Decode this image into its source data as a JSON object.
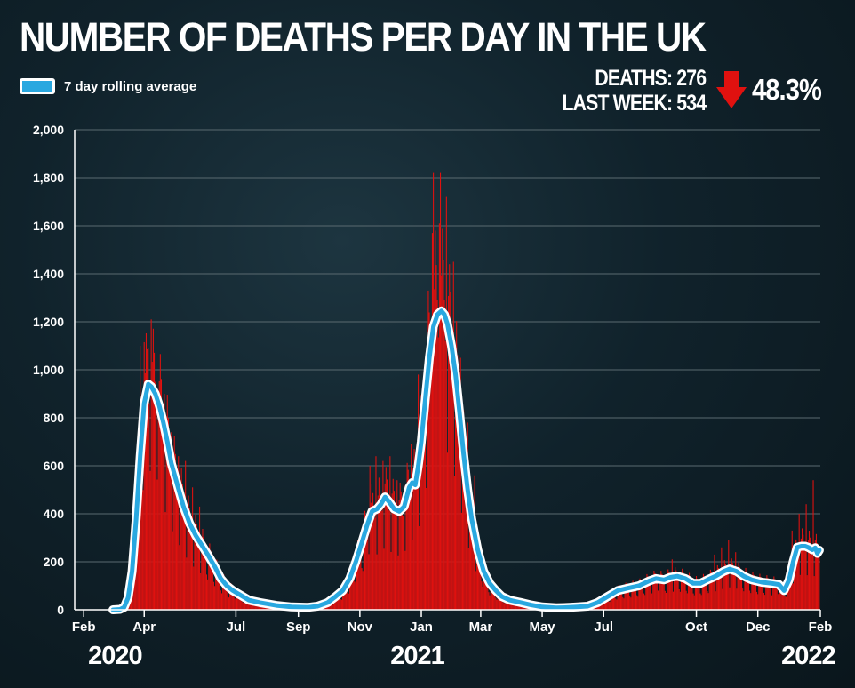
{
  "title": "NUMBER OF DEATHS PER DAY IN THE UK",
  "legend": {
    "label": "7 day rolling average"
  },
  "stats": {
    "deaths_label": "DEATHS:",
    "deaths_value": "276",
    "last_week_label": "LAST WEEK:",
    "last_week_value": "534",
    "change": "48.3%",
    "direction": "down"
  },
  "colors": {
    "bars": "#e0110f",
    "line": "#29a8e0",
    "line_outline": "#ffffff",
    "grid": "#5a6a70",
    "arrow": "#e0110f"
  },
  "chart_data": {
    "type": "bar",
    "overlay": "line",
    "title": "NUMBER OF DEATHS PER DAY IN THE UK",
    "xlabel": "",
    "ylabel": "",
    "ylim": [
      0,
      2000
    ],
    "y_ticks": [
      0,
      200,
      400,
      600,
      800,
      1000,
      1200,
      1400,
      1600,
      1800,
      2000
    ],
    "y_tick_labels": [
      "0",
      "200",
      "400",
      "600",
      "800",
      "1,000",
      "1,200",
      "1,400",
      "1,600",
      "1,800",
      "2,000"
    ],
    "x_ticks": [
      {
        "date": "2020-02-01",
        "label": "Feb"
      },
      {
        "date": "2020-04-01",
        "label": "Apr"
      },
      {
        "date": "2020-07-01",
        "label": "Jul"
      },
      {
        "date": "2020-09-01",
        "label": "Sep"
      },
      {
        "date": "2020-11-01",
        "label": "Nov"
      },
      {
        "date": "2021-01-01",
        "label": "Jan"
      },
      {
        "date": "2021-03-01",
        "label": "Mar"
      },
      {
        "date": "2021-05-01",
        "label": "May"
      },
      {
        "date": "2021-07-01",
        "label": "Jul"
      },
      {
        "date": "2021-10-01",
        "label": "Oct"
      },
      {
        "date": "2021-12-01",
        "label": "Dec"
      },
      {
        "date": "2022-02-01",
        "label": "Feb"
      }
    ],
    "x_range": [
      "2020-01-23",
      "2022-02-01"
    ],
    "year_labels": [
      {
        "date": "2020-03-03",
        "label": "2020"
      },
      {
        "date": "2020-12-28",
        "label": "2021"
      },
      {
        "date": "2022-01-20",
        "label": "2022"
      }
    ],
    "series": [
      {
        "name": "7 day rolling average",
        "kind": "line",
        "points": [
          [
            "2020-03-01",
            0
          ],
          [
            "2020-03-08",
            2
          ],
          [
            "2020-03-12",
            10
          ],
          [
            "2020-03-16",
            50
          ],
          [
            "2020-03-20",
            160
          ],
          [
            "2020-03-24",
            380
          ],
          [
            "2020-03-28",
            640
          ],
          [
            "2020-04-01",
            860
          ],
          [
            "2020-04-05",
            940
          ],
          [
            "2020-04-08",
            930
          ],
          [
            "2020-04-12",
            900
          ],
          [
            "2020-04-16",
            850
          ],
          [
            "2020-04-20",
            780
          ],
          [
            "2020-04-24",
            700
          ],
          [
            "2020-04-28",
            610
          ],
          [
            "2020-05-04",
            520
          ],
          [
            "2020-05-10",
            430
          ],
          [
            "2020-05-16",
            360
          ],
          [
            "2020-05-22",
            310
          ],
          [
            "2020-05-28",
            270
          ],
          [
            "2020-06-03",
            230
          ],
          [
            "2020-06-10",
            180
          ],
          [
            "2020-06-16",
            130
          ],
          [
            "2020-06-22",
            100
          ],
          [
            "2020-06-28",
            80
          ],
          [
            "2020-07-06",
            60
          ],
          [
            "2020-07-14",
            40
          ],
          [
            "2020-07-25",
            30
          ],
          [
            "2020-08-10",
            18
          ],
          [
            "2020-08-25",
            12
          ],
          [
            "2020-09-10",
            10
          ],
          [
            "2020-09-20",
            15
          ],
          [
            "2020-09-30",
            30
          ],
          [
            "2020-10-08",
            55
          ],
          [
            "2020-10-15",
            80
          ],
          [
            "2020-10-22",
            130
          ],
          [
            "2020-10-28",
            200
          ],
          [
            "2020-11-03",
            280
          ],
          [
            "2020-11-08",
            350
          ],
          [
            "2020-11-13",
            410
          ],
          [
            "2020-11-18",
            420
          ],
          [
            "2020-11-22",
            440
          ],
          [
            "2020-11-26",
            470
          ],
          [
            "2020-11-30",
            450
          ],
          [
            "2020-12-05",
            420
          ],
          [
            "2020-12-10",
            410
          ],
          [
            "2020-12-15",
            430
          ],
          [
            "2020-12-20",
            510
          ],
          [
            "2020-12-23",
            530
          ],
          [
            "2020-12-26",
            520
          ],
          [
            "2020-12-29",
            600
          ],
          [
            "2021-01-01",
            700
          ],
          [
            "2021-01-05",
            880
          ],
          [
            "2021-01-09",
            1050
          ],
          [
            "2021-01-13",
            1180
          ],
          [
            "2021-01-17",
            1230
          ],
          [
            "2021-01-21",
            1245
          ],
          [
            "2021-01-24",
            1230
          ],
          [
            "2021-01-27",
            1190
          ],
          [
            "2021-01-31",
            1100
          ],
          [
            "2021-02-04",
            980
          ],
          [
            "2021-02-08",
            820
          ],
          [
            "2021-02-12",
            650
          ],
          [
            "2021-02-16",
            500
          ],
          [
            "2021-02-20",
            380
          ],
          [
            "2021-02-26",
            250
          ],
          [
            "2021-03-04",
            160
          ],
          [
            "2021-03-10",
            110
          ],
          [
            "2021-03-16",
            80
          ],
          [
            "2021-03-22",
            55
          ],
          [
            "2021-03-30",
            40
          ],
          [
            "2021-04-10",
            30
          ],
          [
            "2021-04-20",
            20
          ],
          [
            "2021-05-01",
            12
          ],
          [
            "2021-05-15",
            8
          ],
          [
            "2021-05-28",
            10
          ],
          [
            "2021-06-05",
            12
          ],
          [
            "2021-06-15",
            15
          ],
          [
            "2021-06-25",
            30
          ],
          [
            "2021-07-05",
            55
          ],
          [
            "2021-07-15",
            80
          ],
          [
            "2021-07-25",
            90
          ],
          [
            "2021-08-05",
            100
          ],
          [
            "2021-08-15",
            120
          ],
          [
            "2021-08-22",
            130
          ],
          [
            "2021-08-30",
            125
          ],
          [
            "2021-09-05",
            135
          ],
          [
            "2021-09-12",
            140
          ],
          [
            "2021-09-20",
            130
          ],
          [
            "2021-09-28",
            110
          ],
          [
            "2021-10-05",
            110
          ],
          [
            "2021-10-12",
            125
          ],
          [
            "2021-10-20",
            140
          ],
          [
            "2021-10-28",
            160
          ],
          [
            "2021-11-03",
            170
          ],
          [
            "2021-11-10",
            160
          ],
          [
            "2021-11-17",
            140
          ],
          [
            "2021-11-25",
            125
          ],
          [
            "2021-12-05",
            115
          ],
          [
            "2021-12-15",
            110
          ],
          [
            "2021-12-22",
            105
          ],
          [
            "2021-12-27",
            80
          ],
          [
            "2022-01-01",
            125
          ],
          [
            "2022-01-05",
            200
          ],
          [
            "2022-01-09",
            260
          ],
          [
            "2022-01-13",
            265
          ],
          [
            "2022-01-17",
            265
          ],
          [
            "2022-01-20",
            260
          ],
          [
            "2022-01-24",
            250
          ],
          [
            "2022-01-27",
            258
          ],
          [
            "2022-01-29",
            235
          ],
          [
            "2022-01-31",
            248
          ]
        ]
      },
      {
        "name": "Daily deaths",
        "kind": "bar",
        "spikes": [
          [
            "2020-03-28",
            1100
          ],
          [
            "2020-04-01",
            1115
          ],
          [
            "2020-04-05",
            1090
          ],
          [
            "2020-04-08",
            1210
          ],
          [
            "2020-04-12",
            950
          ],
          [
            "2020-04-15",
            880
          ],
          [
            "2020-04-21",
            900
          ],
          [
            "2020-04-28",
            740
          ],
          [
            "2020-05-05",
            640
          ],
          [
            "2020-05-12",
            620
          ],
          [
            "2020-05-19",
            510
          ],
          [
            "2020-05-26",
            430
          ],
          [
            "2020-11-11",
            600
          ],
          [
            "2020-11-17",
            640
          ],
          [
            "2020-11-24",
            620
          ],
          [
            "2020-12-01",
            640
          ],
          [
            "2020-12-08",
            540
          ],
          [
            "2020-12-15",
            520
          ],
          [
            "2020-12-22",
            690
          ],
          [
            "2020-12-29",
            980
          ],
          [
            "2021-01-05",
            1040
          ],
          [
            "2021-01-08",
            1330
          ],
          [
            "2021-01-12",
            1570
          ],
          [
            "2021-01-13",
            1820
          ],
          [
            "2021-01-15",
            1580
          ],
          [
            "2021-01-19",
            1610
          ],
          [
            "2021-01-20",
            1820
          ],
          [
            "2021-01-26",
            1720
          ],
          [
            "2021-01-29",
            1440
          ],
          [
            "2021-02-02",
            1450
          ],
          [
            "2021-02-09",
            1050
          ],
          [
            "2021-02-16",
            780
          ],
          [
            "2021-02-23",
            560
          ],
          [
            "2021-09-07",
            210
          ],
          [
            "2021-10-19",
            230
          ],
          [
            "2021-10-26",
            260
          ],
          [
            "2021-11-02",
            290
          ],
          [
            "2021-11-09",
            240
          ],
          [
            "2022-01-04",
            330
          ],
          [
            "2022-01-11",
            400
          ],
          [
            "2022-01-18",
            440
          ],
          [
            "2022-01-25",
            540
          ]
        ]
      }
    ]
  }
}
